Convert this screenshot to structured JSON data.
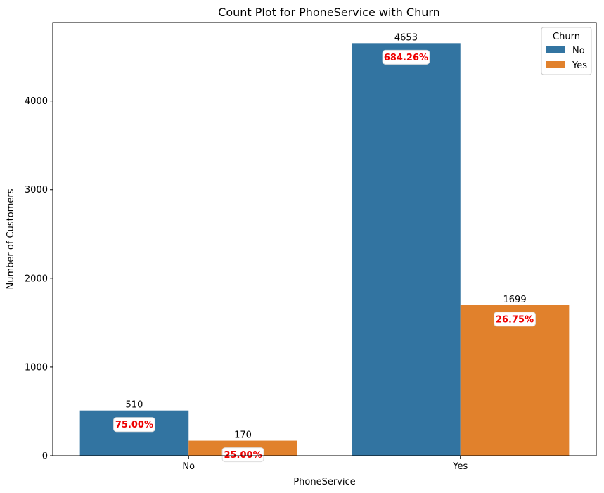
{
  "chart_data": {
    "type": "bar",
    "title": "Count Plot for PhoneService with Churn",
    "xlabel": "PhoneService",
    "ylabel": "Number of Customers",
    "categories": [
      "No",
      "Yes"
    ],
    "series": [
      {
        "name": "No",
        "values": [
          510,
          4653
        ],
        "color": "#3274a1",
        "pct_labels": [
          "75.00%",
          "684.26%"
        ]
      },
      {
        "name": "Yes",
        "values": [
          170,
          1699
        ],
        "color": "#e1812c",
        "pct_labels": [
          "25.00%",
          "26.75%"
        ]
      }
    ],
    "ylim": [
      0,
      4885.65
    ],
    "yticks": [
      0,
      1000,
      2000,
      3000,
      4000
    ],
    "grid": false,
    "legend": {
      "title": "Churn",
      "placement": "top-right"
    },
    "annotation_color": "#ee0000"
  }
}
